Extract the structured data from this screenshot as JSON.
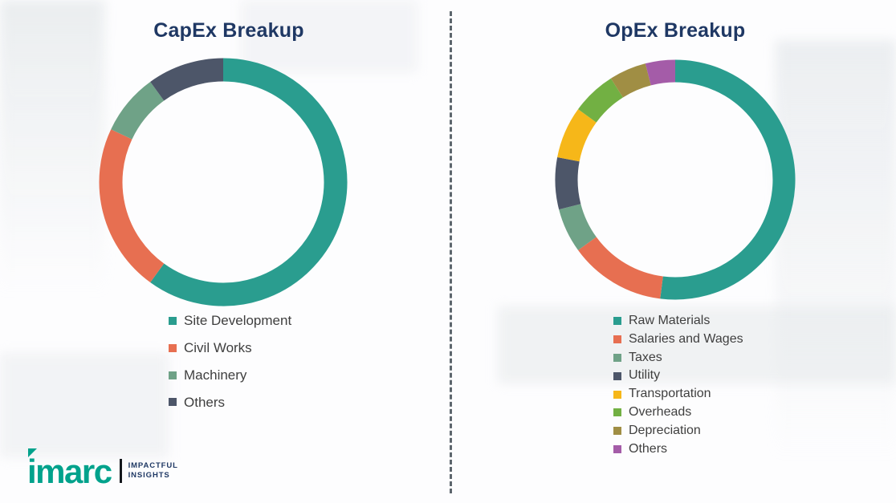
{
  "chart_data": [
    {
      "type": "pie",
      "subtype": "donut",
      "title": "CapEx Breakup",
      "legend_position": "below",
      "categories": [
        "Site Development",
        "Civil Works",
        "Machinery",
        "Others"
      ],
      "values": [
        60,
        22,
        8,
        10
      ],
      "colors": [
        "#2A9D8F",
        "#E76F51",
        "#6FA287",
        "#4D5669"
      ]
    },
    {
      "type": "pie",
      "subtype": "donut",
      "title": "OpEx Breakup",
      "legend_position": "below",
      "categories": [
        "Raw Materials",
        "Salaries and Wages",
        "Taxes",
        "Utility",
        "Transportation",
        "Overheads",
        "Depreciation",
        "Others"
      ],
      "values": [
        52,
        13,
        6,
        7,
        7,
        6,
        5,
        4
      ],
      "colors": [
        "#2A9D8F",
        "#E76F51",
        "#6FA287",
        "#4D5669",
        "#F6B719",
        "#72B043",
        "#A08E44",
        "#A45CA8"
      ]
    }
  ],
  "footer": {
    "brand": "imarc",
    "tagline_line1": "IMPACTFUL",
    "tagline_line2": "INSIGHTS",
    "brand_color": "#00A28C"
  },
  "theme": {
    "title_color": "#1F3864",
    "legend_text_color": "#3F3F3F"
  }
}
